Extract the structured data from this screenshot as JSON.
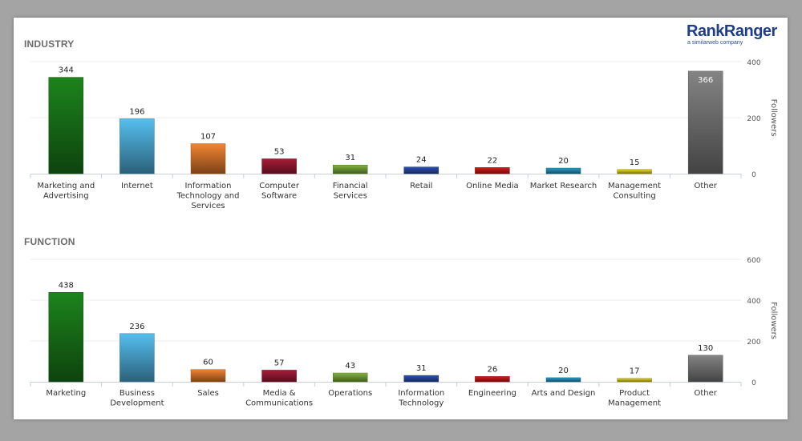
{
  "logo": {
    "part1": "Rank",
    "part2": "Ranger",
    "tagline": "a similarweb company"
  },
  "colors": [
    "#1a7a1a",
    "#4fb1dd",
    "#e07a2e",
    "#9c1a34",
    "#78a83a",
    "#2a4aa8",
    "#c41a1a",
    "#2590b8",
    "#d6c81e",
    "#7a7a7a"
  ],
  "chart_data": [
    {
      "type": "bar",
      "title": "INDUSTRY",
      "ylabel": "Followers",
      "ylim": [
        0,
        400
      ],
      "yticks": [
        "0",
        "200",
        "400"
      ],
      "categories": [
        "Marketing and Advertising",
        "Internet",
        "Information Technology and Services",
        "Computer Software",
        "Financial Services",
        "Retail",
        "Online Media",
        "Market Research",
        "Management Consulting",
        "Other"
      ],
      "values": [
        344,
        196,
        107,
        53,
        31,
        24,
        22,
        20,
        15,
        366
      ]
    },
    {
      "type": "bar",
      "title": "FUNCTION",
      "ylabel": "Followers",
      "ylim": [
        0,
        600
      ],
      "yticks": [
        "0",
        "200",
        "400",
        "600"
      ],
      "categories": [
        "Marketing",
        "Business Development",
        "Sales",
        "Media & Communications",
        "Operations",
        "Information Technology",
        "Engineering",
        "Arts and Design",
        "Product Management",
        "Other"
      ],
      "values": [
        438,
        236,
        60,
        57,
        43,
        31,
        26,
        20,
        17,
        130
      ]
    }
  ]
}
